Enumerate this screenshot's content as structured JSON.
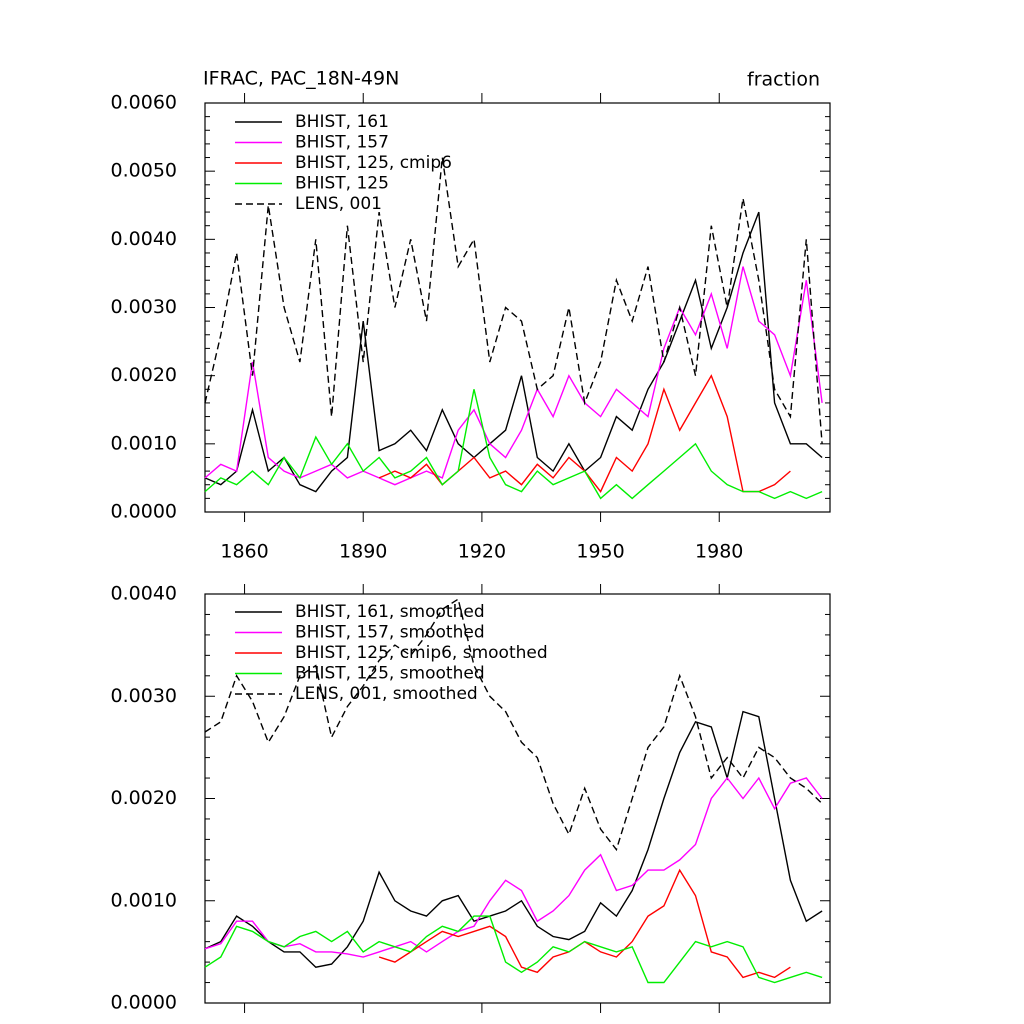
{
  "chart_data": [
    {
      "type": "line",
      "title": "IFRAC, PAC_18N-49N",
      "units_label": "fraction",
      "x": [
        1850,
        1854,
        1858,
        1862,
        1866,
        1870,
        1874,
        1878,
        1882,
        1886,
        1890,
        1894,
        1898,
        1902,
        1906,
        1910,
        1914,
        1918,
        1922,
        1926,
        1930,
        1934,
        1938,
        1942,
        1946,
        1950,
        1954,
        1958,
        1962,
        1966,
        1970,
        1974,
        1978,
        1982,
        1986,
        1990,
        1994,
        1998,
        2002,
        2006
      ],
      "xlim": [
        1850,
        2008
      ],
      "xticks": [
        1860,
        1890,
        1920,
        1950,
        1980
      ],
      "ylim": [
        0,
        0.006
      ],
      "yticks": [
        {
          "value": 0,
          "label": "0.0000"
        },
        {
          "value": 0.001,
          "label": "0.0010"
        },
        {
          "value": 0.002,
          "label": "0.0020"
        },
        {
          "value": 0.003,
          "label": "0.0030"
        },
        {
          "value": 0.004,
          "label": "0.0040"
        },
        {
          "value": 0.005,
          "label": "0.0050"
        },
        {
          "value": 0.006,
          "label": "0.0060"
        }
      ],
      "series": [
        {
          "name": "BHIST, 161",
          "color": "#000000",
          "dashed": false,
          "values": [
            0.0005,
            0.0004,
            0.0006,
            0.0015,
            0.0006,
            0.0008,
            0.0004,
            0.0003,
            0.0006,
            0.0008,
            0.0028,
            0.0009,
            0.001,
            0.0012,
            0.0009,
            0.0015,
            0.001,
            0.0008,
            0.001,
            0.0012,
            0.002,
            0.0008,
            0.0006,
            0.001,
            0.0006,
            0.0008,
            0.0014,
            0.0012,
            0.0018,
            0.0022,
            0.0028,
            0.0034,
            0.0024,
            0.003,
            0.0038,
            0.0044,
            0.0016,
            0.001,
            0.001,
            0.0008
          ]
        },
        {
          "name": "BHIST, 157",
          "color": "#ff00ff",
          "dashed": false,
          "values": [
            0.0005,
            0.0007,
            0.0006,
            0.0022,
            0.0008,
            0.0006,
            0.0005,
            0.0006,
            0.0007,
            0.0005,
            0.0006,
            0.0005,
            0.0004,
            0.0005,
            0.0006,
            0.0005,
            0.0012,
            0.0015,
            0.001,
            0.0008,
            0.0012,
            0.0018,
            0.0014,
            0.002,
            0.0016,
            0.0014,
            0.0018,
            0.0016,
            0.0014,
            0.0024,
            0.003,
            0.0026,
            0.0032,
            0.0024,
            0.0036,
            0.0028,
            0.0026,
            0.002,
            0.0034,
            0.0016
          ]
        },
        {
          "name": "BHIST, 125, cmip6",
          "color": "#ff0000",
          "dashed": false,
          "values": [
            null,
            null,
            null,
            null,
            null,
            null,
            null,
            null,
            null,
            null,
            null,
            0.0005,
            0.0006,
            0.0005,
            0.0007,
            0.0004,
            0.0006,
            0.0008,
            0.0005,
            0.0006,
            0.0004,
            0.0007,
            0.0005,
            0.0008,
            0.0006,
            0.0003,
            0.0008,
            0.0006,
            0.001,
            0.0018,
            0.0012,
            0.0016,
            0.002,
            0.0014,
            0.0003,
            0.0003,
            0.0004,
            0.0006,
            null,
            null
          ]
        },
        {
          "name": "BHIST, 125",
          "color": "#00ee00",
          "dashed": false,
          "values": [
            0.0003,
            0.0005,
            0.0004,
            0.0006,
            0.0004,
            0.0008,
            0.0005,
            0.0011,
            0.0007,
            0.001,
            0.0006,
            0.0008,
            0.0005,
            0.0006,
            0.0008,
            0.0004,
            0.0006,
            0.0018,
            0.0008,
            0.0004,
            0.0003,
            0.0006,
            0.0004,
            0.0005,
            0.0006,
            0.0002,
            0.0004,
            0.0002,
            0.0004,
            0.0006,
            0.0008,
            0.001,
            0.0006,
            0.0004,
            0.0003,
            0.0003,
            0.0002,
            0.0003,
            0.0002,
            0.0003
          ]
        },
        {
          "name": "LENS, 001",
          "color": "#000000",
          "dashed": true,
          "values": [
            0.0016,
            0.0026,
            0.0038,
            0.002,
            0.0045,
            0.003,
            0.0022,
            0.004,
            0.0014,
            0.0042,
            0.0022,
            0.0044,
            0.003,
            0.004,
            0.0028,
            0.0052,
            0.0036,
            0.004,
            0.0022,
            0.003,
            0.0028,
            0.0018,
            0.002,
            0.003,
            0.0016,
            0.0022,
            0.0034,
            0.0028,
            0.0036,
            0.0022,
            0.003,
            0.002,
            0.0042,
            0.003,
            0.0046,
            0.0034,
            0.0018,
            0.0014,
            0.004,
            0.001
          ]
        }
      ]
    },
    {
      "type": "line",
      "x": [
        1850,
        1854,
        1858,
        1862,
        1866,
        1870,
        1874,
        1878,
        1882,
        1886,
        1890,
        1894,
        1898,
        1902,
        1906,
        1910,
        1914,
        1918,
        1922,
        1926,
        1930,
        1934,
        1938,
        1942,
        1946,
        1950,
        1954,
        1958,
        1962,
        1966,
        1970,
        1974,
        1978,
        1982,
        1986,
        1990,
        1994,
        1998,
        2002,
        2006
      ],
      "xlim": [
        1850,
        2008
      ],
      "ylim": [
        0,
        0.004
      ],
      "yticks": [
        {
          "value": 0,
          "label": "0.0000"
        },
        {
          "value": 0.001,
          "label": "0.0010"
        },
        {
          "value": 0.002,
          "label": "0.0020"
        },
        {
          "value": 0.003,
          "label": "0.0030"
        },
        {
          "value": 0.004,
          "label": "0.0040"
        }
      ],
      "series": [
        {
          "name": "BHIST, 161, smoothed",
          "color": "#000000",
          "dashed": false,
          "values": [
            0.00053,
            0.0006,
            0.00085,
            0.00075,
            0.0006,
            0.0005,
            0.0005,
            0.00035,
            0.00038,
            0.00055,
            0.0008,
            0.00128,
            0.001,
            0.0009,
            0.00085,
            0.001,
            0.00105,
            0.0008,
            0.00085,
            0.0009,
            0.001,
            0.00075,
            0.00065,
            0.00062,
            0.0007,
            0.00098,
            0.00085,
            0.0011,
            0.0015,
            0.002,
            0.00245,
            0.00275,
            0.0027,
            0.0022,
            0.00285,
            0.0028,
            0.002,
            0.0012,
            0.0008,
            0.0009
          ]
        },
        {
          "name": "BHIST, 157, smoothed",
          "color": "#ff00ff",
          "dashed": false,
          "values": [
            0.00053,
            0.00058,
            0.0008,
            0.0008,
            0.0006,
            0.00055,
            0.00058,
            0.0005,
            0.0005,
            0.00048,
            0.00045,
            0.0005,
            0.00055,
            0.0006,
            0.0005,
            0.0006,
            0.0007,
            0.00075,
            0.001,
            0.0012,
            0.0011,
            0.0008,
            0.0009,
            0.00105,
            0.0013,
            0.00145,
            0.0011,
            0.00115,
            0.0013,
            0.0013,
            0.0014,
            0.00155,
            0.002,
            0.0022,
            0.002,
            0.0022,
            0.0019,
            0.00215,
            0.0022,
            0.002
          ]
        },
        {
          "name": "BHIST, 125, cmip6, smoothed",
          "color": "#ff0000",
          "dashed": false,
          "values": [
            null,
            null,
            null,
            null,
            null,
            null,
            null,
            null,
            null,
            null,
            null,
            0.00045,
            0.0004,
            0.0005,
            0.0006,
            0.0007,
            0.00065,
            0.0007,
            0.00075,
            0.00065,
            0.00035,
            0.0003,
            0.00045,
            0.0005,
            0.0006,
            0.0005,
            0.00045,
            0.0006,
            0.00085,
            0.00095,
            0.0013,
            0.00105,
            0.0005,
            0.00045,
            0.00025,
            0.0003,
            0.00025,
            0.00035,
            null,
            null
          ]
        },
        {
          "name": "BHIST, 125, smoothed",
          "color": "#00ee00",
          "dashed": false,
          "values": [
            0.00035,
            0.00045,
            0.00075,
            0.0007,
            0.0006,
            0.00055,
            0.00065,
            0.0007,
            0.0006,
            0.0007,
            0.0005,
            0.0006,
            0.00055,
            0.0005,
            0.00065,
            0.00075,
            0.0007,
            0.00085,
            0.00085,
            0.0004,
            0.0003,
            0.0004,
            0.00055,
            0.0005,
            0.0006,
            0.00055,
            0.0005,
            0.00055,
            0.0002,
            0.0002,
            0.0004,
            0.0006,
            0.00055,
            0.0006,
            0.00055,
            0.00025,
            0.0002,
            0.00025,
            0.0003,
            0.00025
          ]
        },
        {
          "name": "LENS, 001, smoothed",
          "color": "#000000",
          "dashed": true,
          "values": [
            0.00265,
            0.00275,
            0.0032,
            0.00295,
            0.00255,
            0.0028,
            0.0032,
            0.0033,
            0.0026,
            0.0029,
            0.0031,
            0.00335,
            0.0035,
            0.0034,
            0.0036,
            0.00385,
            0.00395,
            0.0033,
            0.003,
            0.00285,
            0.00255,
            0.0024,
            0.00195,
            0.00165,
            0.0021,
            0.0017,
            0.0015,
            0.002,
            0.0025,
            0.0027,
            0.0032,
            0.0028,
            0.0022,
            0.0024,
            0.0022,
            0.0025,
            0.0024,
            0.0022,
            0.0021,
            0.00195
          ]
        }
      ]
    }
  ]
}
